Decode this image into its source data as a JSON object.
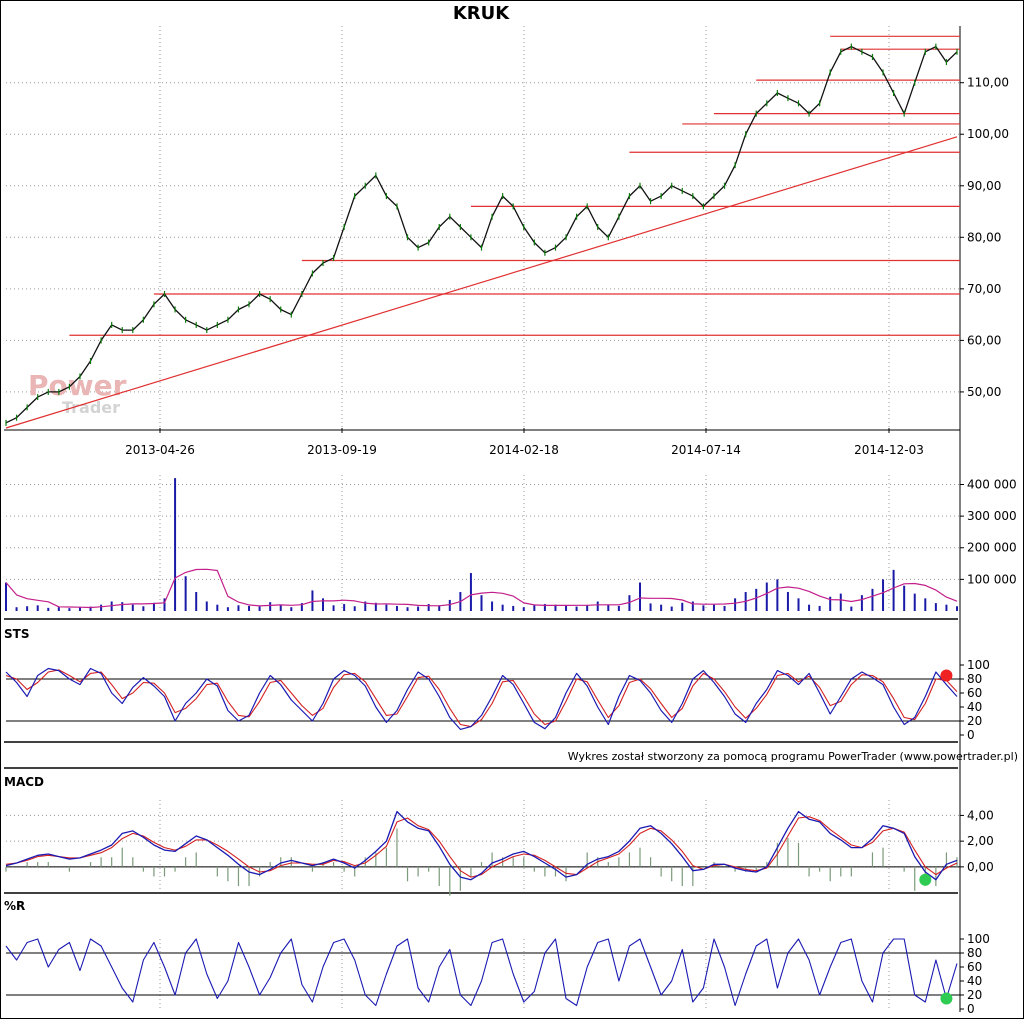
{
  "chart_data": [
    {
      "panel": "price",
      "type": "line",
      "title": "KRUK",
      "x_tick_labels": [
        "2013-04-26",
        "2013-09-19",
        "2014-02-18",
        "2014-07-14",
        "2014-12-03"
      ],
      "y_tick_labels": [
        "110,00",
        "100,00",
        "90,00",
        "80,00",
        "70,00",
        "60,00",
        "50,00"
      ],
      "y_ticks": [
        110,
        100,
        90,
        80,
        70,
        60,
        50
      ],
      "ylim": [
        43,
        121
      ],
      "grid": true,
      "series": [
        {
          "values": [
            44,
            45,
            47,
            49,
            50,
            50,
            51,
            53,
            56,
            60,
            63,
            62,
            62,
            64,
            67,
            69,
            66,
            64,
            63,
            62,
            63,
            64,
            66,
            67,
            69,
            68,
            66,
            65,
            69,
            73,
            75,
            76,
            82,
            88,
            90,
            92,
            88,
            86,
            80,
            78,
            79,
            82,
            84,
            82,
            80,
            78,
            84,
            88,
            86,
            82,
            79,
            77,
            78,
            80,
            84,
            86,
            82,
            80,
            84,
            88,
            90,
            87,
            88,
            90,
            89,
            88,
            86,
            88,
            90,
            94,
            100,
            104,
            106,
            108,
            107,
            106,
            104,
            106,
            112,
            116,
            117,
            116,
            115,
            112,
            108,
            104,
            110,
            116,
            117,
            114,
            116
          ]
        }
      ],
      "trendline": {
        "from": [
          0,
          43
        ],
        "to": [
          90,
          99.5
        ]
      },
      "horizontal_levels": [
        {
          "value": 119,
          "from_index": 78
        },
        {
          "value": 116.5,
          "from_index": 79
        },
        {
          "value": 110.5,
          "from_index": 71
        },
        {
          "value": 104,
          "from_index": 67
        },
        {
          "value": 102,
          "from_index": 64
        },
        {
          "value": 96.5,
          "from_index": 59
        },
        {
          "value": 86,
          "from_index": 44
        },
        {
          "value": 75.5,
          "from_index": 28
        },
        {
          "value": 69,
          "from_index": 14
        },
        {
          "value": 61,
          "from_index": 6
        }
      ],
      "watermark": [
        "Power",
        "Trader"
      ]
    },
    {
      "panel": "volume",
      "type": "bar",
      "y_tick_labels": [
        "400 000",
        "300 000",
        "200 000",
        "100 000"
      ],
      "y_ticks": [
        400000,
        300000,
        200000,
        100000
      ],
      "ylim": [
        0,
        430000
      ],
      "values": [
        90000,
        12000,
        15000,
        18000,
        10000,
        12000,
        9000,
        11000,
        14000,
        20000,
        30000,
        28000,
        20000,
        15000,
        26000,
        40000,
        420000,
        110000,
        60000,
        30000,
        20000,
        12000,
        18000,
        16000,
        14000,
        28000,
        20000,
        12000,
        25000,
        65000,
        40000,
        18000,
        22000,
        15000,
        30000,
        26000,
        20000,
        16000,
        12000,
        14000,
        22000,
        18000,
        35000,
        60000,
        120000,
        50000,
        30000,
        20000,
        16000,
        12000,
        18000,
        22000,
        20000,
        16000,
        14000,
        18000,
        30000,
        20000,
        16000,
        50000,
        90000,
        24000,
        20000,
        14000,
        26000,
        30000,
        18000,
        20000,
        16000,
        40000,
        60000,
        70000,
        90000,
        100000,
        60000,
        40000,
        20000,
        16000,
        45000,
        55000,
        14000,
        50000,
        70000,
        100000,
        130000,
        80000,
        55000,
        40000,
        25000,
        20000,
        15000
      ]
    },
    {
      "panel": "STS",
      "type": "line",
      "label": "STS",
      "y_tick_labels": [
        "100",
        "80",
        "60",
        "40",
        "20",
        "0"
      ],
      "y_ticks": [
        100,
        80,
        60,
        40,
        20,
        0
      ],
      "ylim": [
        0,
        100
      ],
      "reference_lines": [
        80,
        20
      ],
      "series": [
        {
          "color": "#1a1ab3",
          "values": [
            90,
            75,
            55,
            85,
            95,
            92,
            80,
            72,
            95,
            88,
            60,
            45,
            68,
            82,
            70,
            55,
            20,
            45,
            60,
            80,
            70,
            35,
            20,
            28,
            60,
            85,
            72,
            50,
            35,
            20,
            45,
            80,
            92,
            85,
            70,
            40,
            18,
            35,
            65,
            90,
            80,
            55,
            25,
            8,
            12,
            28,
            55,
            85,
            72,
            45,
            18,
            9,
            25,
            60,
            88,
            70,
            40,
            15,
            55,
            85,
            78,
            60,
            35,
            18,
            45,
            80,
            92,
            75,
            55,
            30,
            18,
            45,
            65,
            92,
            85,
            72,
            88,
            60,
            30,
            55,
            80,
            90,
            82,
            72,
            40,
            15,
            25,
            55,
            90,
            72,
            55
          ]
        },
        {
          "color": "#d42020",
          "values": [
            85,
            80,
            65,
            75,
            90,
            93,
            85,
            76,
            88,
            90,
            72,
            52,
            60,
            75,
            74,
            60,
            32,
            38,
            52,
            72,
            74,
            48,
            28,
            26,
            48,
            75,
            78,
            60,
            42,
            28,
            38,
            68,
            86,
            88,
            76,
            52,
            28,
            30,
            55,
            82,
            84,
            65,
            38,
            15,
            12,
            22,
            45,
            76,
            78,
            55,
            30,
            15,
            20,
            48,
            80,
            76,
            50,
            25,
            42,
            75,
            80,
            66,
            45,
            25,
            38,
            70,
            88,
            80,
            62,
            40,
            24,
            38,
            58,
            85,
            88,
            76,
            84,
            68,
            42,
            48,
            72,
            86,
            85,
            76,
            52,
            25,
            22,
            45,
            80,
            78,
            62
          ]
        }
      ],
      "signal_marker": {
        "index": 89,
        "value": 85,
        "color": "#ee2222"
      }
    },
    {
      "panel": "MACD",
      "type": "line",
      "label": "MACD",
      "y_tick_labels": [
        "4,00",
        "2,00",
        "0,00"
      ],
      "y_ticks": [
        4,
        2,
        0
      ],
      "ylim": [
        -1.8,
        5.2
      ],
      "zero_line": 0,
      "series": [
        {
          "color": "#1a1ab3",
          "values": [
            0.1,
            0.3,
            0.6,
            0.9,
            1.0,
            0.8,
            0.6,
            0.7,
            1.0,
            1.3,
            1.7,
            2.6,
            2.8,
            2.3,
            1.7,
            1.3,
            1.2,
            1.8,
            2.4,
            2.1,
            1.5,
            0.9,
            0.2,
            -0.4,
            -0.6,
            -0.2,
            0.3,
            0.5,
            0.3,
            0.1,
            0.3,
            0.6,
            0.3,
            -0.1,
            0.5,
            1.2,
            2.0,
            4.3,
            3.5,
            3.0,
            2.8,
            1.6,
            0.2,
            -0.8,
            -1.0,
            -0.5,
            0.3,
            0.6,
            1.0,
            1.2,
            0.8,
            0.3,
            -0.2,
            -0.8,
            -0.6,
            0.2,
            0.6,
            0.8,
            1.2,
            2.0,
            3.0,
            3.2,
            2.6,
            1.8,
            0.8,
            -0.3,
            -0.2,
            0.2,
            0.2,
            -0.1,
            -0.3,
            -0.4,
            0.0,
            1.5,
            3.0,
            4.3,
            3.7,
            3.5,
            2.6,
            2.1,
            1.5,
            1.5,
            2.2,
            3.2,
            3.0,
            2.6,
            0.8,
            -0.4,
            -1.0,
            0.2,
            0.5
          ]
        },
        {
          "color": "#d42020",
          "values": [
            0.2,
            0.3,
            0.5,
            0.8,
            0.9,
            0.8,
            0.7,
            0.7,
            0.9,
            1.1,
            1.5,
            2.2,
            2.6,
            2.4,
            1.9,
            1.5,
            1.3,
            1.6,
            2.1,
            2.1,
            1.7,
            1.2,
            0.6,
            0.0,
            -0.4,
            -0.3,
            0.1,
            0.3,
            0.3,
            0.2,
            0.2,
            0.5,
            0.4,
            0.1,
            0.3,
            0.9,
            1.6,
            3.5,
            3.8,
            3.2,
            2.9,
            2.0,
            0.8,
            -0.3,
            -0.8,
            -0.6,
            0.0,
            0.4,
            0.8,
            1.0,
            0.9,
            0.5,
            0.0,
            -0.5,
            -0.6,
            -0.1,
            0.4,
            0.7,
            1.0,
            1.7,
            2.6,
            3.0,
            2.8,
            2.1,
            1.2,
            0.1,
            -0.2,
            0.1,
            0.2,
            0.0,
            -0.2,
            -0.3,
            -0.1,
            1.0,
            2.4,
            3.8,
            3.9,
            3.6,
            2.9,
            2.3,
            1.7,
            1.5,
            1.9,
            2.8,
            3.0,
            2.7,
            1.3,
            0.0,
            -0.6,
            -0.1,
            0.3
          ]
        }
      ],
      "signal_marker": {
        "index": 87,
        "value": -1.0,
        "color": "#2ecc52"
      }
    },
    {
      "panel": "%R",
      "type": "line",
      "label": "%R",
      "y_tick_labels": [
        "100",
        "80",
        "60",
        "40",
        "20",
        "0"
      ],
      "y_ticks": [
        100,
        80,
        60,
        40,
        20,
        0
      ],
      "ylim": [
        0,
        100
      ],
      "reference_lines": [
        80,
        20
      ],
      "series": [
        {
          "color": "#1a1ab3",
          "values": [
            90,
            70,
            95,
            100,
            60,
            85,
            95,
            55,
            100,
            90,
            60,
            30,
            10,
            70,
            95,
            60,
            20,
            80,
            100,
            50,
            15,
            40,
            95,
            60,
            20,
            45,
            80,
            100,
            35,
            10,
            60,
            95,
            100,
            70,
            20,
            5,
            50,
            90,
            100,
            30,
            10,
            60,
            85,
            20,
            5,
            40,
            95,
            100,
            50,
            10,
            25,
            80,
            100,
            15,
            5,
            60,
            95,
            100,
            40,
            90,
            100,
            60,
            20,
            40,
            85,
            10,
            30,
            100,
            60,
            5,
            50,
            90,
            100,
            30,
            80,
            100,
            70,
            20,
            60,
            95,
            100,
            40,
            10,
            80,
            100,
            100,
            20,
            10,
            70,
            15,
            65
          ]
        }
      ],
      "signal_marker": {
        "index": 89,
        "value": 15,
        "color": "#2ecc52"
      }
    }
  ],
  "footer_note": "Wykres został stworzony za pomocą programu PowerTrader (www.powertrader.pl)"
}
